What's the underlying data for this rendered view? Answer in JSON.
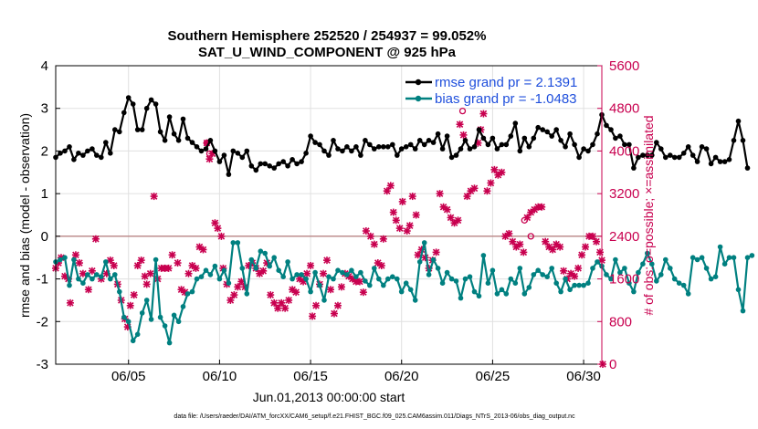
{
  "chart_data": {
    "type": "line",
    "title_line1": "Southern Hemisphere 252520 / 254937 = 99.052%",
    "title_line2": "SAT_U_WIND_COMPONENT @ 925 hPa",
    "xlabel": "Jun.01,2013 00:00:00 start",
    "ylabel": "rmse and bias (model - observation)",
    "ylabel_right": "# of obs: o=possible; ×=assimilated",
    "xlim": [
      1.0,
      31.0
    ],
    "ylim": [
      -3,
      4
    ],
    "ylim_right": [
      0,
      5600
    ],
    "x_ticks": [
      5,
      10,
      15,
      20,
      25,
      30
    ],
    "x_tick_labels": [
      "06/05",
      "06/10",
      "06/15",
      "06/20",
      "06/25",
      "06/30"
    ],
    "y_ticks": [
      -3,
      -2,
      -1,
      0,
      1,
      2,
      3,
      4
    ],
    "y_tick_labels": [
      "-3",
      "-2",
      "-1",
      "0",
      "1",
      "2",
      "3",
      "4"
    ],
    "y_right_ticks": [
      0,
      800,
      1600,
      2400,
      3200,
      4000,
      4800,
      5600
    ],
    "y_right_tick_labels": [
      "0",
      "800",
      "1600",
      "2400",
      "3200",
      "4000",
      "4800",
      "5600"
    ],
    "x_start": 1.0,
    "x_step": 0.25,
    "series": [
      {
        "name": "rmse grand pr = 2.1391",
        "color": "#000000",
        "marker": "circle",
        "values": [
          1.85,
          1.95,
          2.0,
          2.1,
          1.8,
          1.95,
          1.9,
          2.0,
          2.05,
          1.9,
          1.85,
          2.2,
          1.95,
          2.5,
          2.45,
          2.9,
          3.25,
          3.1,
          2.5,
          2.5,
          3.0,
          3.2,
          3.1,
          2.45,
          2.25,
          2.8,
          2.4,
          2.25,
          2.75,
          2.3,
          2.2,
          2.1,
          2.0,
          2.05,
          2.25,
          2.0,
          1.75,
          1.9,
          1.45,
          2.0,
          1.95,
          1.85,
          2.0,
          1.65,
          1.55,
          1.7,
          1.7,
          1.65,
          1.6,
          1.7,
          1.75,
          1.65,
          1.8,
          1.7,
          1.75,
          1.95,
          2.35,
          2.2,
          2.15,
          2.0,
          1.9,
          2.25,
          2.05,
          2.0,
          2.1,
          2.0,
          2.1,
          1.9,
          2.25,
          2.15,
          2.05,
          2.1,
          2.1,
          2.1,
          2.15,
          1.9,
          2.05,
          2.1,
          2.15,
          2.05,
          2.25,
          2.15,
          2.25,
          2.2,
          2.4,
          2.05,
          2.35,
          1.85,
          1.9,
          2.05,
          2.25,
          2.05,
          2.1,
          2.5,
          2.3,
          2.15,
          2.3,
          2.05,
          2.15,
          2.15,
          2.35,
          2.65,
          2.0,
          2.3,
          2.1,
          2.3,
          2.55,
          2.5,
          2.45,
          2.35,
          2.5,
          2.25,
          2.1,
          2.4,
          2.15,
          1.85,
          2.05,
          2.0,
          2.15,
          2.4,
          2.85,
          2.6,
          2.5,
          2.3,
          2.35,
          2.15,
          2.15,
          1.6,
          1.85,
          1.9,
          1.9,
          1.9,
          2.2,
          2.05,
          1.85,
          1.9,
          1.85,
          1.85,
          1.95,
          2.1,
          1.9,
          1.75,
          2.1,
          2.05,
          1.7,
          1.85,
          1.75,
          1.75,
          1.8,
          2.25,
          2.7,
          2.25,
          1.6
        ]
      },
      {
        "name": "bias grand pr = -1.0483",
        "color": "#008080",
        "marker": "circle",
        "values": [
          -0.6,
          -0.55,
          -0.5,
          -1.15,
          -0.55,
          -1.0,
          -1.1,
          -0.9,
          -1.0,
          -0.9,
          -0.95,
          -0.6,
          -1.0,
          -0.9,
          -1.3,
          -1.9,
          -2.0,
          -2.45,
          -2.3,
          -1.8,
          -1.5,
          -1.95,
          -0.55,
          -1.9,
          -2.1,
          -2.5,
          -1.85,
          -2.0,
          -1.65,
          -1.35,
          -1.3,
          -1.0,
          -0.95,
          -0.8,
          -0.9,
          -0.7,
          -1.0,
          -0.8,
          -1.1,
          -0.15,
          -0.15,
          -0.75,
          -1.35,
          -0.55,
          -0.75,
          -0.35,
          -0.4,
          -0.7,
          -0.5,
          -0.8,
          -0.95,
          -0.6,
          -1.0,
          -0.9,
          -0.9,
          -1.0,
          -1.3,
          -0.85,
          -1.15,
          -1.5,
          -0.95,
          -1.0,
          -0.8,
          -0.85,
          -0.9,
          -0.8,
          -0.95,
          -0.85,
          -1.05,
          -1.15,
          -0.75,
          -1.0,
          -1.15,
          -1.0,
          -0.95,
          -1.0,
          -1.3,
          -1.1,
          -1.25,
          -1.5,
          -0.6,
          -0.15,
          -0.9,
          -0.55,
          -0.75,
          -1.1,
          -0.85,
          -1.0,
          -1.05,
          -1.45,
          -1.0,
          -0.95,
          -1.3,
          -1.4,
          -0.45,
          -1.1,
          -0.8,
          -1.35,
          -1.25,
          -1.35,
          -1.0,
          -1.1,
          -0.75,
          -1.35,
          -1.2,
          -0.9,
          -0.8,
          -0.9,
          -0.95,
          -0.75,
          -1.1,
          -1.3,
          -1.0,
          -1.25,
          -1.15,
          -1.15,
          -1.15,
          -1.1,
          -0.75,
          -0.6,
          -0.7,
          -0.9,
          -1.0,
          -0.55,
          -0.85,
          -0.75,
          -1.1,
          -1.3,
          -0.85,
          -0.65,
          -0.4,
          -0.65,
          -1.05,
          -0.9,
          -0.55,
          -0.75,
          -1.0,
          -1.1,
          -1.15,
          -1.35,
          -0.5,
          -0.55,
          -0.5,
          -0.75,
          -1.0,
          -0.95,
          -0.25,
          -0.65,
          -0.5,
          -0.5,
          -1.25,
          -1.75,
          -0.5,
          -0.45
        ]
      }
    ],
    "obs_assimilated": [
      [
        1.0,
        1800
      ],
      [
        1.15,
        1900
      ],
      [
        1.3,
        2000
      ],
      [
        1.5,
        1650
      ],
      [
        1.7,
        1600
      ],
      [
        1.8,
        1150
      ],
      [
        2.1,
        2050
      ],
      [
        2.3,
        1900
      ],
      [
        2.5,
        1700
      ],
      [
        2.8,
        1400
      ],
      [
        3.0,
        1750
      ],
      [
        3.2,
        2350
      ],
      [
        3.5,
        1600
      ],
      [
        3.8,
        1700
      ],
      [
        4.0,
        1950
      ],
      [
        4.2,
        1850
      ],
      [
        4.4,
        1500
      ],
      [
        4.6,
        1200
      ],
      [
        4.8,
        850
      ],
      [
        4.95,
        700
      ],
      [
        5.1,
        1100
      ],
      [
        5.3,
        1300
      ],
      [
        5.5,
        1850
      ],
      [
        5.7,
        1950
      ],
      [
        5.9,
        1650
      ],
      [
        6.0,
        1500
      ],
      [
        6.2,
        1700
      ],
      [
        6.4,
        3150
      ],
      [
        6.6,
        1600
      ],
      [
        6.8,
        1800
      ],
      [
        7.0,
        1800
      ],
      [
        7.2,
        1800
      ],
      [
        7.4,
        2050
      ],
      [
        7.7,
        1900
      ],
      [
        7.9,
        1400
      ],
      [
        8.1,
        1350
      ],
      [
        8.3,
        1700
      ],
      [
        8.5,
        1850
      ],
      [
        8.7,
        1800
      ],
      [
        8.9,
        2200
      ],
      [
        9.1,
        2150
      ],
      [
        9.3,
        4150
      ],
      [
        9.45,
        3850
      ],
      [
        9.6,
        3950
      ],
      [
        9.75,
        2650
      ],
      [
        9.9,
        2550
      ],
      [
        10.1,
        2400
      ],
      [
        10.2,
        1800
      ],
      [
        10.4,
        1500
      ],
      [
        10.6,
        1200
      ],
      [
        10.8,
        1300
      ],
      [
        11.0,
        1450
      ],
      [
        11.2,
        1550
      ],
      [
        11.4,
        1450
      ],
      [
        11.6,
        1850
      ],
      [
        11.8,
        1900
      ],
      [
        12.0,
        1800
      ],
      [
        12.2,
        1700
      ],
      [
        12.4,
        1750
      ],
      [
        12.6,
        1900
      ],
      [
        12.8,
        1300
      ],
      [
        13.0,
        1150
      ],
      [
        13.2,
        1050
      ],
      [
        13.4,
        1150
      ],
      [
        13.6,
        1050
      ],
      [
        13.8,
        1200
      ],
      [
        14.0,
        1400
      ],
      [
        14.2,
        1350
      ],
      [
        14.4,
        1600
      ],
      [
        14.6,
        1550
      ],
      [
        14.8,
        1700
      ],
      [
        15.0,
        1850
      ],
      [
        15.1,
        900
      ],
      [
        15.3,
        1100
      ],
      [
        15.5,
        1500
      ],
      [
        15.7,
        1700
      ],
      [
        15.9,
        1950
      ],
      [
        16.1,
        1400
      ],
      [
        16.3,
        950
      ],
      [
        16.5,
        1100
      ],
      [
        16.7,
        1450
      ],
      [
        16.9,
        1700
      ],
      [
        17.1,
        1650
      ],
      [
        17.3,
        1600
      ],
      [
        17.5,
        1550
      ],
      [
        17.7,
        1550
      ],
      [
        17.9,
        1350
      ],
      [
        18.05,
        2500
      ],
      [
        18.3,
        2400
      ],
      [
        18.5,
        2250
      ],
      [
        18.7,
        1900
      ],
      [
        18.9,
        1850
      ],
      [
        19.0,
        2350
      ],
      [
        19.2,
        3250
      ],
      [
        19.4,
        3350
      ],
      [
        19.55,
        2850
      ],
      [
        19.7,
        2700
      ],
      [
        19.9,
        2550
      ],
      [
        20.05,
        3050
      ],
      [
        20.3,
        2500
      ],
      [
        20.45,
        2600
      ],
      [
        20.6,
        3150
      ],
      [
        20.8,
        2800
      ],
      [
        20.9,
        2050
      ],
      [
        21.1,
        2150
      ],
      [
        21.3,
        2000
      ],
      [
        21.5,
        1800
      ],
      [
        21.7,
        1950
      ],
      [
        21.9,
        2100
      ],
      [
        22.1,
        3200
      ],
      [
        22.3,
        2950
      ],
      [
        22.5,
        2900
      ],
      [
        22.7,
        2750
      ],
      [
        22.9,
        2650
      ],
      [
        23.1,
        2700
      ],
      [
        23.2,
        4500
      ],
      [
        23.4,
        4300
      ],
      [
        23.6,
        3150
      ],
      [
        23.8,
        3250
      ],
      [
        24.0,
        3300
      ],
      [
        24.2,
        4150
      ],
      [
        24.35,
        4400
      ],
      [
        24.5,
        4700
      ],
      [
        24.7,
        3250
      ],
      [
        24.9,
        3400
      ],
      [
        25.1,
        3650
      ],
      [
        25.3,
        3550
      ],
      [
        25.5,
        3600
      ],
      [
        25.7,
        2400
      ],
      [
        25.9,
        2450
      ],
      [
        26.1,
        2300
      ],
      [
        26.3,
        2200
      ],
      [
        26.5,
        2250
      ],
      [
        26.7,
        2100
      ],
      [
        26.9,
        2750
      ],
      [
        27.1,
        2850
      ],
      [
        27.3,
        2900
      ],
      [
        27.5,
        2950
      ],
      [
        27.7,
        2950
      ],
      [
        27.9,
        2300
      ],
      [
        28.1,
        2200
      ],
      [
        28.3,
        2150
      ],
      [
        28.5,
        2250
      ],
      [
        28.7,
        2200
      ],
      [
        28.9,
        1750
      ],
      [
        29.1,
        1600
      ],
      [
        29.3,
        1700
      ],
      [
        29.5,
        1650
      ],
      [
        29.7,
        1800
      ],
      [
        29.9,
        2050
      ],
      [
        30.1,
        2200
      ],
      [
        30.3,
        2400
      ],
      [
        30.5,
        2400
      ],
      [
        30.7,
        2300
      ],
      [
        30.9,
        2100
      ],
      [
        31.0,
        1950
      ],
      [
        31.05,
        0
      ]
    ],
    "obs_possible": [
      [
        9.3,
        4150
      ],
      [
        9.45,
        3950
      ],
      [
        23.35,
        4750
      ],
      [
        26.75,
        2700
      ],
      [
        27.1,
        2400
      ]
    ]
  },
  "legend": {
    "rmse_label": "rmse grand pr = 2.1391",
    "bias_label": "bias grand pr = -1.0483"
  },
  "footer": "data file: /Users/raeder/DAI/ATM_forcXX/CAM6_setup/f.e21.FHIST_BGC.f09_025.CAM6assim.011/Diags_NTrS_2013-06/obs_diag_output.nc"
}
